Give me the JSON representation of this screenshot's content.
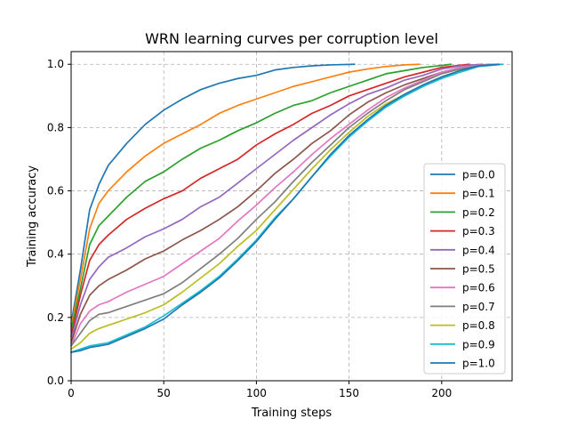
{
  "chart_data": {
    "type": "line",
    "title": "WRN learning curves per corruption level",
    "xlabel": "Training steps",
    "ylabel": "Training accuracy",
    "xlim": [
      0,
      238
    ],
    "ylim": [
      0.0,
      1.04
    ],
    "xticks": [
      0,
      50,
      100,
      150,
      200
    ],
    "yticks": [
      0.0,
      0.2,
      0.4,
      0.6,
      0.8,
      1.0
    ],
    "ytick_labels": [
      "0.0",
      "0.2",
      "0.4",
      "0.6",
      "0.8",
      "1.0"
    ],
    "grid": true,
    "legend_position": "lower-right",
    "series": [
      {
        "name": "p=0.0",
        "color": "#1f77b4",
        "end": 153,
        "x": [
          0,
          5,
          10,
          15,
          20,
          30,
          40,
          50,
          60,
          70,
          80,
          90,
          100,
          110,
          120,
          130,
          140,
          153
        ],
        "y": [
          0.18,
          0.35,
          0.54,
          0.62,
          0.68,
          0.75,
          0.81,
          0.855,
          0.89,
          0.92,
          0.94,
          0.955,
          0.965,
          0.982,
          0.99,
          0.995,
          0.998,
          1.0
        ]
      },
      {
        "name": "p=0.1",
        "color": "#ff7f0e",
        "end": 188,
        "x": [
          0,
          5,
          10,
          15,
          20,
          30,
          40,
          50,
          60,
          70,
          80,
          90,
          100,
          110,
          120,
          130,
          140,
          150,
          160,
          170,
          180,
          188
        ],
        "y": [
          0.17,
          0.32,
          0.48,
          0.56,
          0.6,
          0.66,
          0.71,
          0.75,
          0.78,
          0.81,
          0.845,
          0.87,
          0.89,
          0.91,
          0.93,
          0.945,
          0.96,
          0.975,
          0.985,
          0.993,
          0.998,
          1.0
        ]
      },
      {
        "name": "p=0.2",
        "color": "#2ca02c",
        "end": 205,
        "x": [
          0,
          5,
          10,
          15,
          20,
          30,
          40,
          50,
          60,
          70,
          80,
          90,
          100,
          110,
          120,
          130,
          140,
          150,
          160,
          170,
          180,
          190,
          200,
          205
        ],
        "y": [
          0.16,
          0.29,
          0.43,
          0.49,
          0.52,
          0.58,
          0.63,
          0.66,
          0.7,
          0.735,
          0.76,
          0.79,
          0.815,
          0.845,
          0.87,
          0.885,
          0.91,
          0.93,
          0.95,
          0.97,
          0.98,
          0.99,
          0.996,
          1.0
        ]
      },
      {
        "name": "p=0.3",
        "color": "#d62728",
        "end": 215,
        "x": [
          0,
          5,
          10,
          15,
          20,
          30,
          40,
          50,
          60,
          70,
          80,
          90,
          100,
          110,
          120,
          130,
          140,
          150,
          160,
          170,
          180,
          190,
          200,
          210,
          215
        ],
        "y": [
          0.14,
          0.27,
          0.38,
          0.43,
          0.46,
          0.51,
          0.545,
          0.575,
          0.6,
          0.64,
          0.67,
          0.7,
          0.745,
          0.78,
          0.81,
          0.845,
          0.87,
          0.9,
          0.92,
          0.94,
          0.96,
          0.975,
          0.99,
          0.997,
          1.0
        ]
      },
      {
        "name": "p=0.4",
        "color": "#9467bd",
        "end": 222,
        "x": [
          0,
          5,
          10,
          15,
          20,
          30,
          40,
          50,
          60,
          70,
          80,
          90,
          100,
          110,
          120,
          130,
          140,
          150,
          160,
          170,
          180,
          190,
          200,
          210,
          222
        ],
        "y": [
          0.13,
          0.24,
          0.32,
          0.36,
          0.39,
          0.42,
          0.455,
          0.48,
          0.51,
          0.55,
          0.58,
          0.625,
          0.67,
          0.715,
          0.76,
          0.8,
          0.84,
          0.875,
          0.905,
          0.925,
          0.95,
          0.965,
          0.985,
          0.995,
          1.0
        ]
      },
      {
        "name": "p=0.5",
        "color": "#8c564b",
        "end": 226,
        "x": [
          0,
          5,
          10,
          15,
          20,
          30,
          40,
          50,
          60,
          70,
          80,
          90,
          100,
          110,
          120,
          130,
          140,
          150,
          160,
          170,
          180,
          190,
          200,
          210,
          220,
          226
        ],
        "y": [
          0.12,
          0.21,
          0.27,
          0.3,
          0.32,
          0.35,
          0.385,
          0.41,
          0.445,
          0.475,
          0.51,
          0.55,
          0.6,
          0.655,
          0.7,
          0.75,
          0.79,
          0.84,
          0.88,
          0.91,
          0.935,
          0.955,
          0.975,
          0.99,
          0.997,
          1.0
        ]
      },
      {
        "name": "p=0.6",
        "color": "#e377c2",
        "end": 228,
        "x": [
          0,
          5,
          10,
          15,
          20,
          30,
          40,
          50,
          60,
          70,
          80,
          90,
          100,
          110,
          120,
          130,
          140,
          150,
          160,
          170,
          180,
          190,
          200,
          210,
          220,
          228
        ],
        "y": [
          0.11,
          0.18,
          0.22,
          0.24,
          0.25,
          0.28,
          0.305,
          0.33,
          0.37,
          0.41,
          0.45,
          0.505,
          0.555,
          0.61,
          0.66,
          0.715,
          0.765,
          0.81,
          0.855,
          0.895,
          0.925,
          0.95,
          0.975,
          0.99,
          0.997,
          1.0
        ]
      },
      {
        "name": "p=0.7",
        "color": "#7f7f7f",
        "end": 230,
        "x": [
          0,
          5,
          10,
          15,
          20,
          30,
          40,
          50,
          60,
          70,
          80,
          90,
          100,
          110,
          120,
          130,
          140,
          150,
          160,
          170,
          180,
          190,
          200,
          210,
          220,
          230
        ],
        "y": [
          0.11,
          0.15,
          0.19,
          0.21,
          0.215,
          0.235,
          0.255,
          0.275,
          0.31,
          0.355,
          0.4,
          0.45,
          0.51,
          0.565,
          0.63,
          0.69,
          0.745,
          0.8,
          0.845,
          0.885,
          0.92,
          0.945,
          0.97,
          0.985,
          0.995,
          1.0
        ]
      },
      {
        "name": "p=0.8",
        "color": "#bcbd22",
        "end": 232,
        "x": [
          0,
          5,
          10,
          15,
          20,
          30,
          40,
          50,
          60,
          70,
          80,
          90,
          100,
          110,
          120,
          130,
          140,
          150,
          160,
          170,
          180,
          190,
          200,
          210,
          220,
          232
        ],
        "y": [
          0.1,
          0.12,
          0.15,
          0.165,
          0.175,
          0.195,
          0.215,
          0.24,
          0.28,
          0.325,
          0.37,
          0.425,
          0.475,
          0.54,
          0.605,
          0.67,
          0.73,
          0.785,
          0.835,
          0.875,
          0.905,
          0.935,
          0.96,
          0.98,
          0.994,
          1.0
        ]
      },
      {
        "name": "p=0.9",
        "color": "#17becf",
        "end": 233,
        "x": [
          0,
          5,
          10,
          15,
          20,
          30,
          40,
          50,
          60,
          70,
          80,
          90,
          100,
          110,
          120,
          130,
          140,
          150,
          160,
          170,
          180,
          190,
          200,
          210,
          220,
          233
        ],
        "y": [
          0.09,
          0.1,
          0.11,
          0.115,
          0.12,
          0.145,
          0.17,
          0.205,
          0.245,
          0.285,
          0.33,
          0.385,
          0.445,
          0.515,
          0.575,
          0.645,
          0.71,
          0.77,
          0.82,
          0.865,
          0.9,
          0.93,
          0.955,
          0.975,
          0.993,
          1.0
        ]
      },
      {
        "name": "p=1.0",
        "color": "#1f77b4",
        "end": 231,
        "x": [
          0,
          5,
          10,
          15,
          20,
          30,
          40,
          50,
          60,
          70,
          80,
          90,
          100,
          110,
          120,
          130,
          140,
          150,
          160,
          170,
          180,
          190,
          200,
          210,
          220,
          231
        ],
        "y": [
          0.09,
          0.095,
          0.105,
          0.11,
          0.115,
          0.14,
          0.165,
          0.195,
          0.24,
          0.28,
          0.325,
          0.38,
          0.44,
          0.51,
          0.575,
          0.645,
          0.715,
          0.775,
          0.825,
          0.87,
          0.905,
          0.935,
          0.96,
          0.98,
          0.995,
          1.0
        ]
      }
    ]
  }
}
